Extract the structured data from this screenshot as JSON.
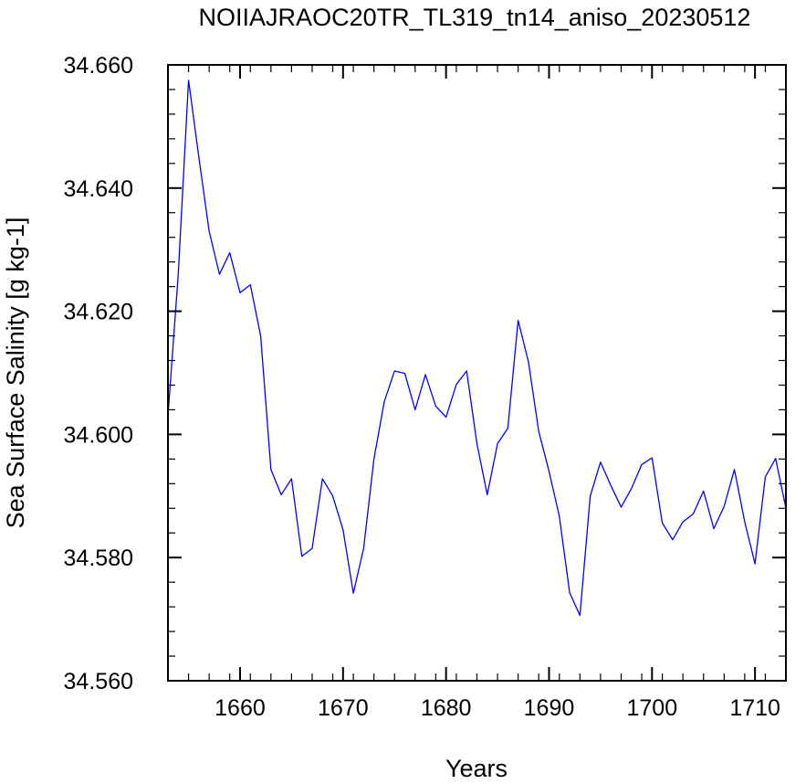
{
  "chart_data": {
    "type": "line",
    "title": "NOIIAJRAOC20TR_TL319_tn14_aniso_20230512",
    "xlabel": "Years",
    "ylabel": "Sea Surface Salinity [g kg-1]",
    "xlim": [
      1653,
      1713
    ],
    "ylim": [
      34.56,
      34.66
    ],
    "x_ticks": [
      1660,
      1670,
      1680,
      1690,
      1700,
      1710
    ],
    "x_tick_labels": [
      "1660",
      "1670",
      "1680",
      "1690",
      "1700",
      "1710"
    ],
    "y_ticks": [
      34.56,
      34.58,
      34.6,
      34.62,
      34.64,
      34.66
    ],
    "y_tick_labels": [
      "34.560",
      "34.580",
      "34.600",
      "34.620",
      "34.640",
      "34.660"
    ],
    "grid": false,
    "series": [
      {
        "color": "#0000ff",
        "x": [
          1653,
          1654,
          1655,
          1656,
          1657,
          1658,
          1659,
          1660,
          1661,
          1662,
          1663,
          1664,
          1665,
          1666,
          1667,
          1668,
          1669,
          1670,
          1671,
          1672,
          1673,
          1674,
          1675,
          1676,
          1677,
          1678,
          1679,
          1680,
          1681,
          1682,
          1683,
          1684,
          1685,
          1686,
          1687,
          1688,
          1689,
          1690,
          1691,
          1692,
          1693,
          1694,
          1695,
          1696,
          1697,
          1698,
          1699,
          1700,
          1701,
          1702,
          1703,
          1704,
          1705,
          1706,
          1707,
          1708,
          1709,
          1710,
          1711,
          1712,
          1713
        ],
        "y": [
          34.603,
          34.626,
          34.6575,
          34.645,
          34.633,
          34.626,
          34.6295,
          34.623,
          34.6243,
          34.616,
          34.5943,
          34.5902,
          34.5928,
          34.5802,
          34.5815,
          34.5928,
          34.59,
          34.5845,
          34.5742,
          34.5815,
          34.596,
          34.6053,
          34.6103,
          34.6099,
          34.604,
          34.6097,
          34.6046,
          34.6028,
          34.6081,
          34.6103,
          34.5985,
          34.5902,
          34.5985,
          34.601,
          34.6185,
          34.6118,
          34.6005,
          34.594,
          34.5867,
          34.5743,
          34.5706,
          34.59,
          34.5955,
          34.5917,
          34.5882,
          34.5912,
          34.5951,
          34.5962,
          34.5856,
          34.5829,
          34.5858,
          34.5871,
          34.5908,
          34.5847,
          34.5883,
          34.5943,
          34.5858,
          34.579,
          34.5931,
          34.5961,
          34.588
        ]
      }
    ]
  }
}
